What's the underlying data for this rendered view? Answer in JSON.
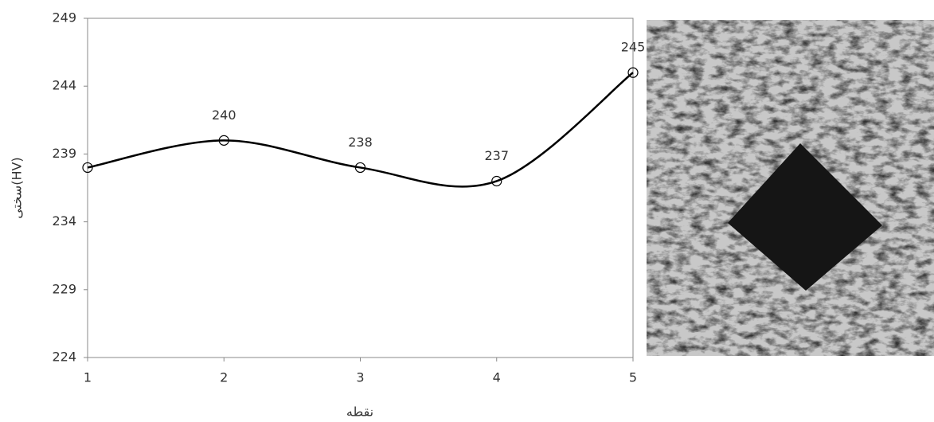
{
  "chart_data": {
    "type": "line",
    "x_label": "نقطه",
    "y_label": "سختی(HV)",
    "x": [
      1,
      2,
      3,
      4,
      5
    ],
    "values": [
      238,
      240,
      238,
      237,
      245
    ],
    "value_labels": [
      null,
      "240",
      "238",
      "237",
      "245"
    ],
    "color": "#000000",
    "smooth": true,
    "xlim": [
      1,
      5
    ],
    "xticks": [
      1,
      2,
      3,
      4,
      5
    ],
    "ylim": [
      224,
      249
    ],
    "yticks": [
      224,
      229,
      234,
      239,
      244,
      249
    ]
  }
}
